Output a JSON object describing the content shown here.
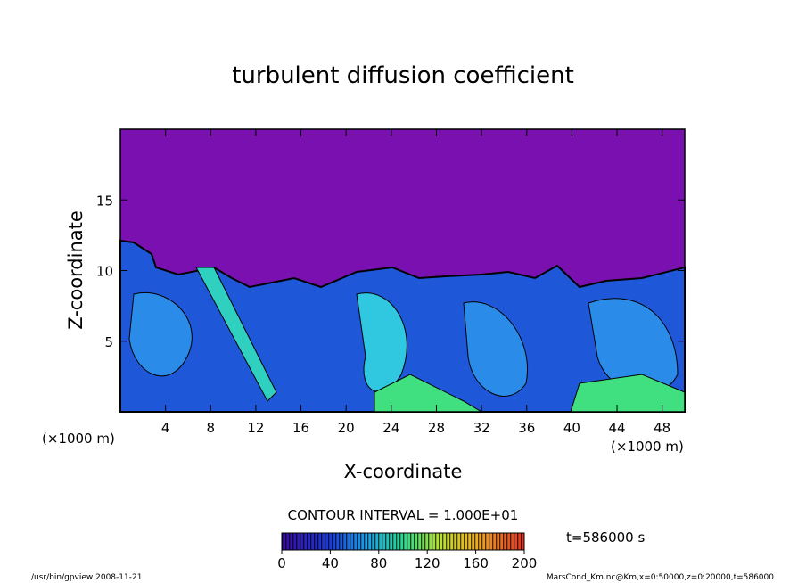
{
  "chart_data": {
    "type": "contour",
    "title": "turbulent diffusion coefficient",
    "xlabel": "X-coordinate",
    "ylabel": "Z-coordinate",
    "unit_label": "(×1000 m)",
    "xlim": [
      0,
      50
    ],
    "xticks": [
      4,
      8,
      12,
      16,
      20,
      24,
      28,
      32,
      36,
      40,
      44,
      48
    ],
    "ylim": [
      0,
      20
    ],
    "yticks": [
      5,
      10,
      15
    ],
    "colorbar": {
      "lim": [
        0,
        200
      ],
      "ticks": [
        0,
        40,
        80,
        120,
        160,
        200
      ]
    },
    "contour_interval_label": "CONTOUR INTERVAL = 1.000E+01",
    "time_label": "t=586000 s",
    "footer_left": "/usr/bin/gpview   2008-11-21",
    "footer_right": "MarsCond_Km.nc@Km,x=0:50000,z=0:20000,t=586000"
  }
}
